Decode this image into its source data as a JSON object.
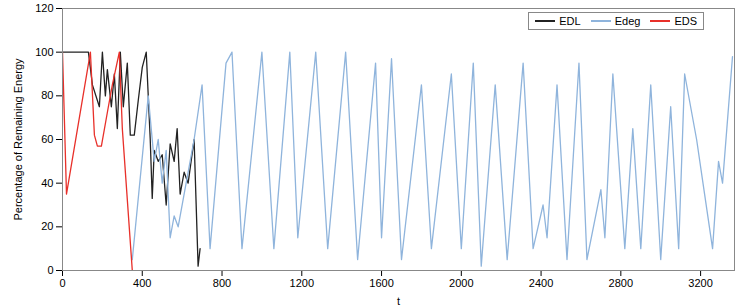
{
  "chart_data": {
    "type": "line",
    "xlabel": "t",
    "ylabel": "Percentage of Remaining Energy",
    "xlim": [
      0,
      3370
    ],
    "xticks": [
      0,
      400,
      800,
      1200,
      1600,
      2000,
      2400,
      2800,
      3200
    ],
    "ylim": [
      0,
      120
    ],
    "yticks": [
      0,
      20,
      40,
      60,
      80,
      100,
      120
    ],
    "grid": false,
    "legend": "top-right",
    "series": [
      {
        "name": "EDL",
        "color": "#222222",
        "x": [
          0,
          130,
          150,
          185,
          200,
          215,
          225,
          245,
          260,
          275,
          290,
          305,
          325,
          340,
          360,
          380,
          400,
          420,
          440,
          450,
          460,
          480,
          500,
          520,
          540,
          560,
          575,
          590,
          610,
          630,
          660,
          680,
          690
        ],
        "values": [
          100,
          100,
          85,
          75,
          100,
          80,
          92,
          75,
          90,
          65,
          100,
          75,
          95,
          62,
          62,
          78,
          93,
          100,
          60,
          33,
          55,
          50,
          53,
          30,
          58,
          50,
          65,
          35,
          45,
          40,
          60,
          2,
          10
        ]
      },
      {
        "name": "Edeg",
        "color": "#8fb4dc",
        "x": [
          350,
          430,
          460,
          480,
          500,
          520,
          540,
          560,
          580,
          620,
          660,
          700,
          740,
          820,
          850,
          900,
          1000,
          1060,
          1140,
          1180,
          1270,
          1330,
          1420,
          1480,
          1570,
          1600,
          1650,
          1700,
          1800,
          1850,
          1950,
          2000,
          2060,
          2100,
          2170,
          2230,
          2310,
          2360,
          2410,
          2430,
          2480,
          2530,
          2590,
          2630,
          2700,
          2720,
          2760,
          2820,
          2860,
          2900,
          2950,
          3000,
          3050,
          3090,
          3120,
          3180,
          3220,
          3260,
          3290,
          3310,
          3360
        ],
        "values": [
          5,
          80,
          50,
          60,
          40,
          55,
          15,
          25,
          20,
          40,
          60,
          85,
          10,
          95,
          100,
          10,
          100,
          10,
          100,
          15,
          100,
          10,
          100,
          5,
          95,
          15,
          97,
          5,
          85,
          10,
          90,
          10,
          95,
          2,
          85,
          5,
          95,
          10,
          30,
          15,
          85,
          5,
          95,
          5,
          37,
          15,
          90,
          10,
          65,
          10,
          85,
          5,
          75,
          10,
          90,
          60,
          35,
          10,
          50,
          40,
          98
        ]
      },
      {
        "name": "EDS",
        "color": "#e8302a",
        "x": [
          0,
          20,
          140,
          160,
          175,
          195,
          230,
          250,
          285,
          300,
          350
        ],
        "values": [
          100,
          35,
          100,
          62,
          57,
          57,
          75,
          85,
          100,
          65,
          0
        ]
      }
    ]
  }
}
